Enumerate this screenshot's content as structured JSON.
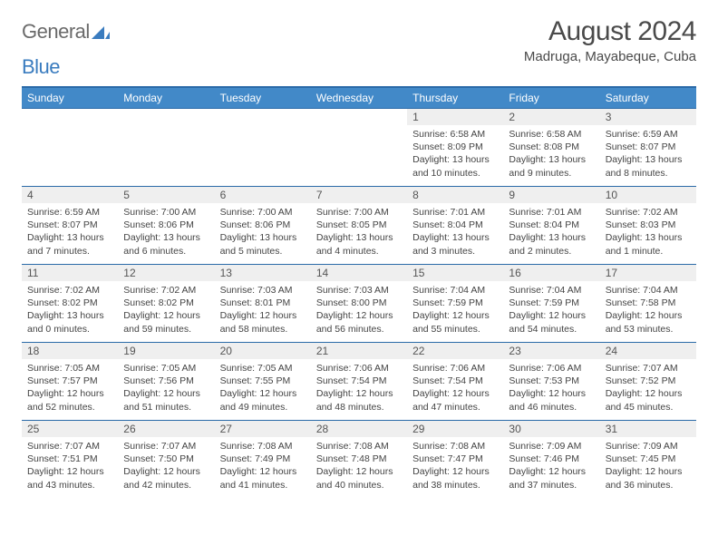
{
  "logo": {
    "text1": "General",
    "text2": "Blue"
  },
  "title": "August 2024",
  "location": "Madruga, Mayabeque, Cuba",
  "colors": {
    "header_bg": "#4289c8",
    "header_border": "#2a6aa8",
    "daynum_bg": "#efefef",
    "text": "#4a4a4a"
  },
  "dow": [
    "Sunday",
    "Monday",
    "Tuesday",
    "Wednesday",
    "Thursday",
    "Friday",
    "Saturday"
  ],
  "weeks": [
    [
      null,
      null,
      null,
      null,
      {
        "n": "1",
        "sr": "6:58 AM",
        "ss": "8:09 PM",
        "dl": "13 hours and 10 minutes."
      },
      {
        "n": "2",
        "sr": "6:58 AM",
        "ss": "8:08 PM",
        "dl": "13 hours and 9 minutes."
      },
      {
        "n": "3",
        "sr": "6:59 AM",
        "ss": "8:07 PM",
        "dl": "13 hours and 8 minutes."
      }
    ],
    [
      {
        "n": "4",
        "sr": "6:59 AM",
        "ss": "8:07 PM",
        "dl": "13 hours and 7 minutes."
      },
      {
        "n": "5",
        "sr": "7:00 AM",
        "ss": "8:06 PM",
        "dl": "13 hours and 6 minutes."
      },
      {
        "n": "6",
        "sr": "7:00 AM",
        "ss": "8:06 PM",
        "dl": "13 hours and 5 minutes."
      },
      {
        "n": "7",
        "sr": "7:00 AM",
        "ss": "8:05 PM",
        "dl": "13 hours and 4 minutes."
      },
      {
        "n": "8",
        "sr": "7:01 AM",
        "ss": "8:04 PM",
        "dl": "13 hours and 3 minutes."
      },
      {
        "n": "9",
        "sr": "7:01 AM",
        "ss": "8:04 PM",
        "dl": "13 hours and 2 minutes."
      },
      {
        "n": "10",
        "sr": "7:02 AM",
        "ss": "8:03 PM",
        "dl": "13 hours and 1 minute."
      }
    ],
    [
      {
        "n": "11",
        "sr": "7:02 AM",
        "ss": "8:02 PM",
        "dl": "13 hours and 0 minutes."
      },
      {
        "n": "12",
        "sr": "7:02 AM",
        "ss": "8:02 PM",
        "dl": "12 hours and 59 minutes."
      },
      {
        "n": "13",
        "sr": "7:03 AM",
        "ss": "8:01 PM",
        "dl": "12 hours and 58 minutes."
      },
      {
        "n": "14",
        "sr": "7:03 AM",
        "ss": "8:00 PM",
        "dl": "12 hours and 56 minutes."
      },
      {
        "n": "15",
        "sr": "7:04 AM",
        "ss": "7:59 PM",
        "dl": "12 hours and 55 minutes."
      },
      {
        "n": "16",
        "sr": "7:04 AM",
        "ss": "7:59 PM",
        "dl": "12 hours and 54 minutes."
      },
      {
        "n": "17",
        "sr": "7:04 AM",
        "ss": "7:58 PM",
        "dl": "12 hours and 53 minutes."
      }
    ],
    [
      {
        "n": "18",
        "sr": "7:05 AM",
        "ss": "7:57 PM",
        "dl": "12 hours and 52 minutes."
      },
      {
        "n": "19",
        "sr": "7:05 AM",
        "ss": "7:56 PM",
        "dl": "12 hours and 51 minutes."
      },
      {
        "n": "20",
        "sr": "7:05 AM",
        "ss": "7:55 PM",
        "dl": "12 hours and 49 minutes."
      },
      {
        "n": "21",
        "sr": "7:06 AM",
        "ss": "7:54 PM",
        "dl": "12 hours and 48 minutes."
      },
      {
        "n": "22",
        "sr": "7:06 AM",
        "ss": "7:54 PM",
        "dl": "12 hours and 47 minutes."
      },
      {
        "n": "23",
        "sr": "7:06 AM",
        "ss": "7:53 PM",
        "dl": "12 hours and 46 minutes."
      },
      {
        "n": "24",
        "sr": "7:07 AM",
        "ss": "7:52 PM",
        "dl": "12 hours and 45 minutes."
      }
    ],
    [
      {
        "n": "25",
        "sr": "7:07 AM",
        "ss": "7:51 PM",
        "dl": "12 hours and 43 minutes."
      },
      {
        "n": "26",
        "sr": "7:07 AM",
        "ss": "7:50 PM",
        "dl": "12 hours and 42 minutes."
      },
      {
        "n": "27",
        "sr": "7:08 AM",
        "ss": "7:49 PM",
        "dl": "12 hours and 41 minutes."
      },
      {
        "n": "28",
        "sr": "7:08 AM",
        "ss": "7:48 PM",
        "dl": "12 hours and 40 minutes."
      },
      {
        "n": "29",
        "sr": "7:08 AM",
        "ss": "7:47 PM",
        "dl": "12 hours and 38 minutes."
      },
      {
        "n": "30",
        "sr": "7:09 AM",
        "ss": "7:46 PM",
        "dl": "12 hours and 37 minutes."
      },
      {
        "n": "31",
        "sr": "7:09 AM",
        "ss": "7:45 PM",
        "dl": "12 hours and 36 minutes."
      }
    ]
  ],
  "labels": {
    "sunrise": "Sunrise: ",
    "sunset": "Sunset: ",
    "daylight": "Daylight: "
  }
}
